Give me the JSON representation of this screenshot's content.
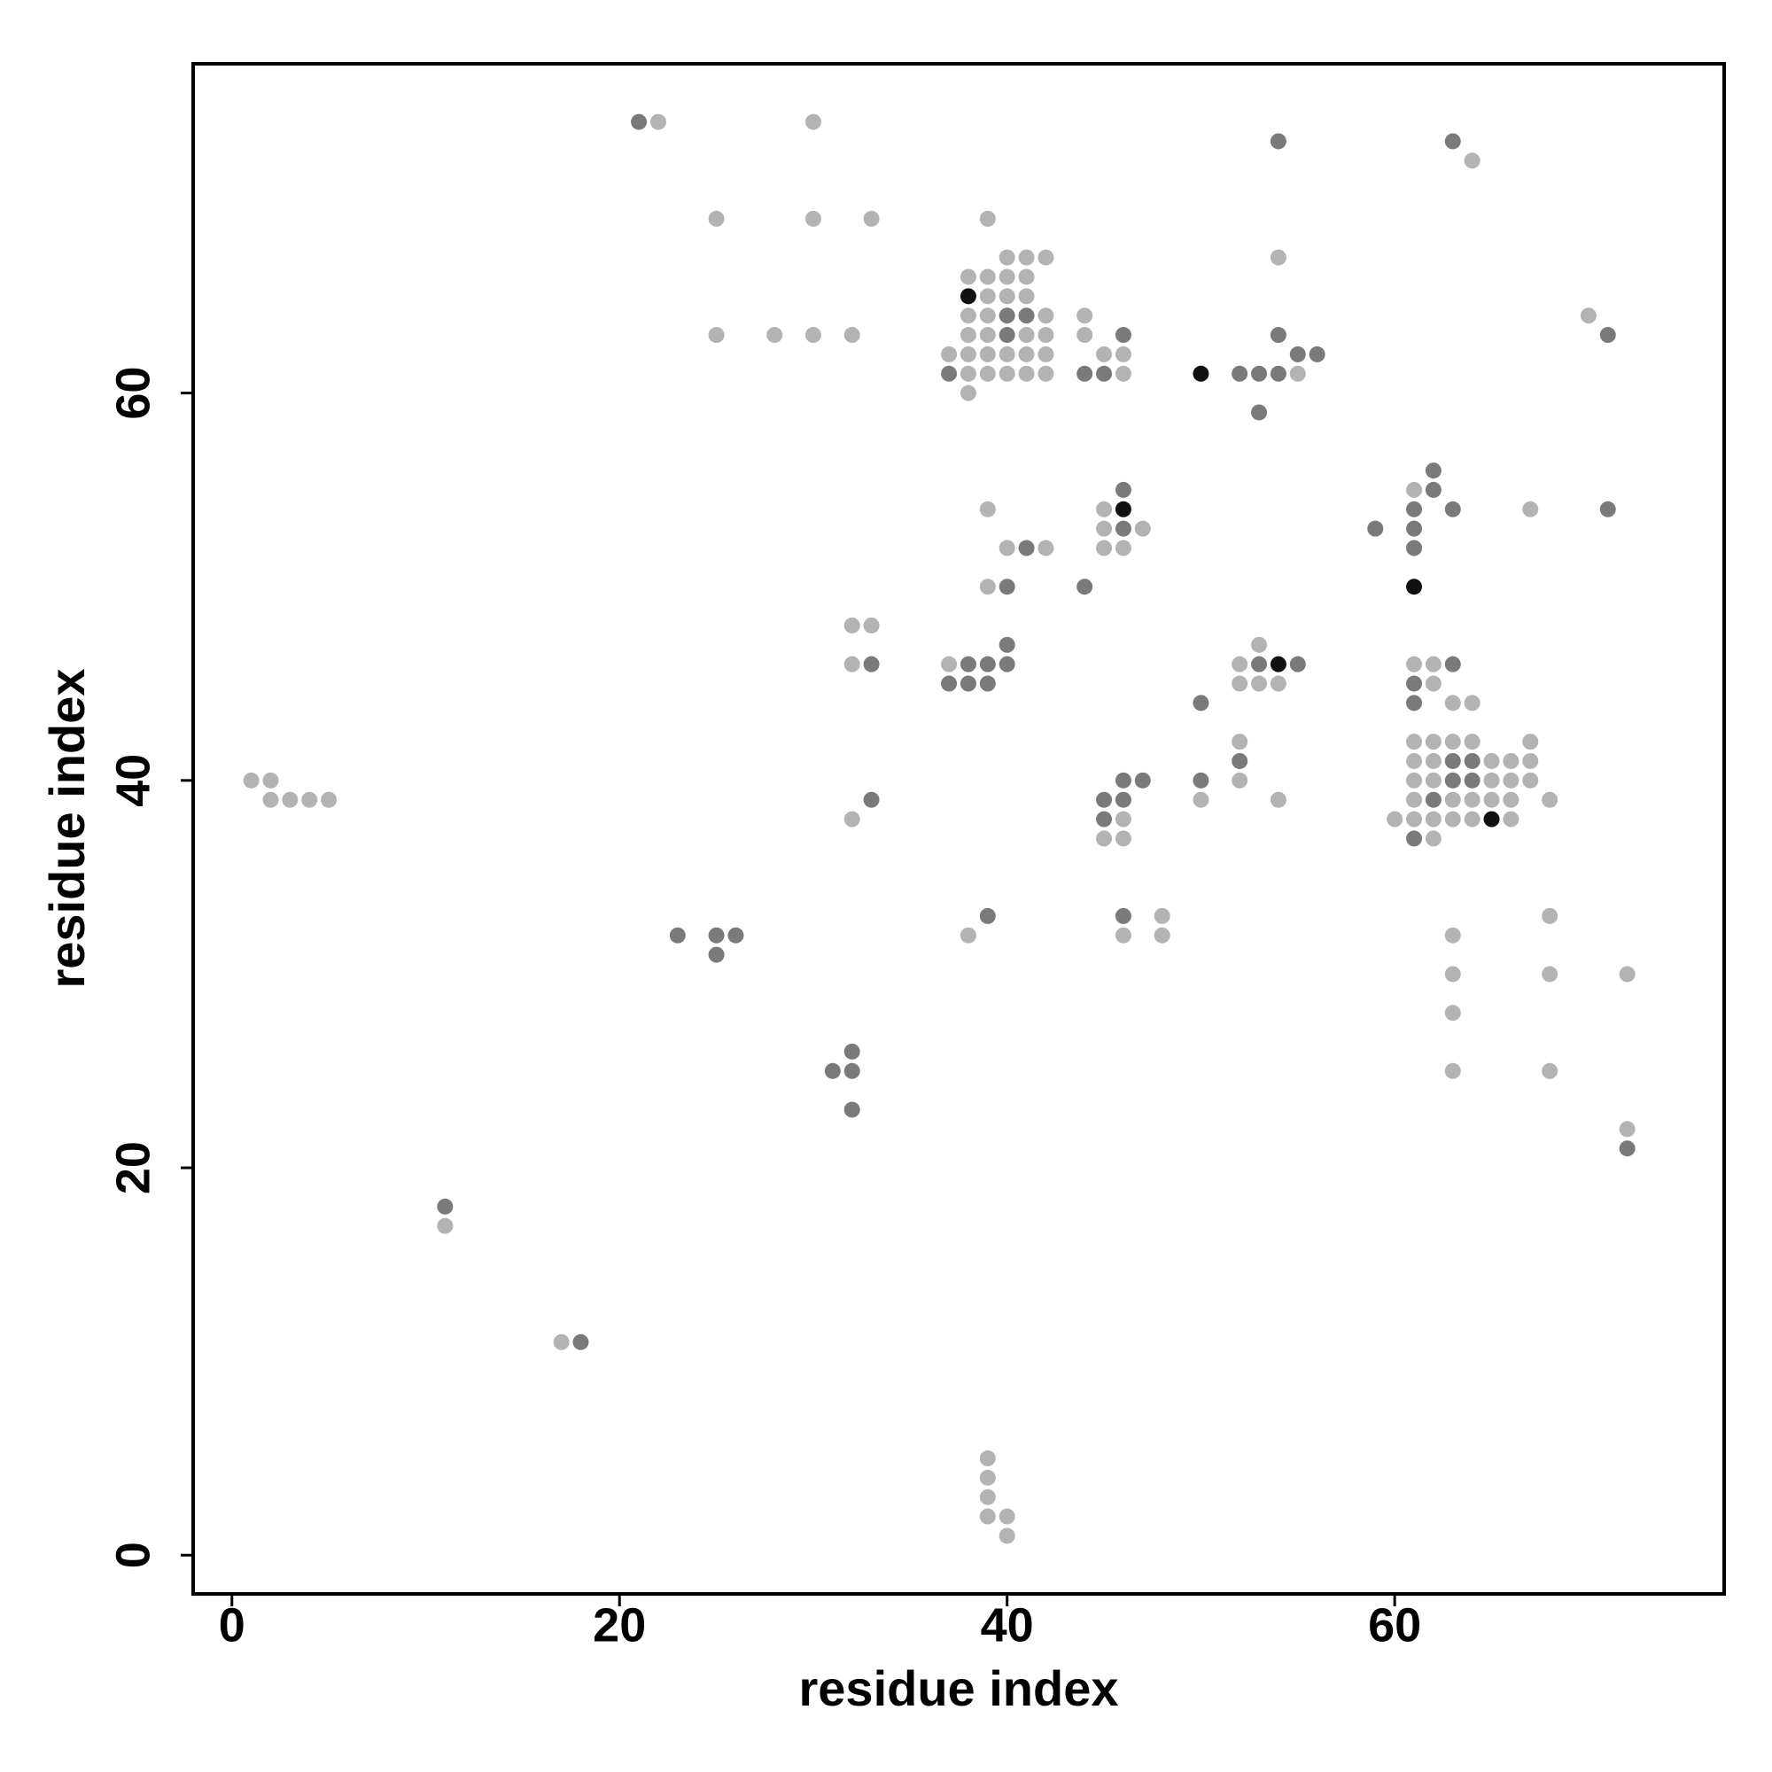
{
  "chart_data": {
    "type": "scatter",
    "x_label": "residue index",
    "y_label": "residue index",
    "xlim": [
      -2,
      77
    ],
    "ylim": [
      -2,
      77
    ],
    "xticks": [
      0,
      20,
      40,
      60
    ],
    "yticks": [
      0,
      20,
      40,
      60
    ],
    "grid": false,
    "series": [
      {
        "color": "#b3b3b3",
        "x": [
          22,
          30,
          64,
          25,
          30,
          33,
          39,
          40,
          41,
          42,
          54,
          38,
          39,
          40,
          41,
          39,
          40,
          41,
          38,
          39,
          42,
          44,
          70,
          38,
          39,
          41,
          42,
          44,
          25,
          28,
          30,
          32,
          37,
          38,
          39,
          40,
          41,
          42,
          45,
          46,
          38,
          39,
          40,
          41,
          42,
          46,
          55,
          38,
          61,
          39,
          45,
          67,
          45,
          47,
          40,
          42,
          45,
          46,
          39,
          32,
          33,
          53,
          32,
          37,
          52,
          61,
          62,
          52,
          53,
          54,
          62,
          63,
          64,
          52,
          61,
          62,
          63,
          64,
          67,
          61,
          62,
          65,
          66,
          67,
          1,
          2,
          52,
          61,
          62,
          65,
          66,
          67,
          2,
          3,
          4,
          5,
          50,
          54,
          61,
          63,
          64,
          65,
          66,
          68,
          32,
          46,
          60,
          61,
          62,
          63,
          64,
          66,
          45,
          46,
          62,
          48,
          68,
          38,
          46,
          48,
          63,
          63,
          68,
          72,
          63,
          63,
          68,
          72,
          11,
          17,
          39,
          39,
          39,
          39,
          40,
          40
        ],
        "y": [
          74,
          74,
          72,
          69,
          69,
          69,
          69,
          67,
          67,
          67,
          67,
          66,
          66,
          66,
          66,
          65,
          65,
          65,
          64,
          64,
          64,
          64,
          64,
          63,
          63,
          63,
          63,
          63,
          63,
          63,
          63,
          63,
          62,
          62,
          62,
          62,
          62,
          62,
          62,
          62,
          61,
          61,
          61,
          61,
          61,
          61,
          61,
          60,
          55,
          54,
          54,
          54,
          53,
          53,
          52,
          52,
          52,
          52,
          50,
          48,
          48,
          47,
          46,
          46,
          46,
          46,
          46,
          45,
          45,
          45,
          45,
          44,
          44,
          42,
          42,
          42,
          42,
          42,
          42,
          41,
          41,
          41,
          41,
          41,
          40,
          40,
          40,
          40,
          40,
          40,
          40,
          40,
          39,
          39,
          39,
          39,
          39,
          39,
          39,
          39,
          39,
          39,
          39,
          39,
          38,
          38,
          38,
          38,
          38,
          38,
          38,
          38,
          37,
          37,
          37,
          33,
          33,
          32,
          32,
          32,
          32,
          30,
          30,
          30,
          28,
          25,
          25,
          22,
          17,
          11,
          5,
          4,
          3,
          2,
          2,
          1
        ]
      },
      {
        "color": "#7a7a7a",
        "x": [
          21,
          54,
          63,
          40,
          41,
          40,
          46,
          54,
          71,
          55,
          56,
          37,
          44,
          45,
          52,
          53,
          54,
          53,
          62,
          46,
          62,
          61,
          63,
          71,
          46,
          59,
          61,
          41,
          61,
          40,
          44,
          40,
          33,
          38,
          39,
          40,
          53,
          55,
          63,
          37,
          38,
          39,
          61,
          50,
          61,
          52,
          63,
          64,
          46,
          47,
          50,
          63,
          64,
          33,
          45,
          46,
          62,
          45,
          61,
          39,
          46,
          23,
          25,
          26,
          25,
          32,
          31,
          32,
          32,
          72,
          11,
          18
        ],
        "y": [
          74,
          73,
          73,
          64,
          64,
          63,
          63,
          63,
          63,
          62,
          62,
          61,
          61,
          61,
          61,
          61,
          61,
          59,
          56,
          55,
          55,
          54,
          54,
          54,
          53,
          53,
          53,
          52,
          52,
          50,
          50,
          47,
          46,
          46,
          46,
          46,
          46,
          46,
          46,
          45,
          45,
          45,
          45,
          44,
          44,
          41,
          41,
          41,
          40,
          40,
          40,
          40,
          40,
          39,
          39,
          39,
          39,
          38,
          37,
          33,
          33,
          32,
          32,
          32,
          31,
          26,
          25,
          25,
          23,
          21,
          18,
          11
        ]
      },
      {
        "color": "#111111",
        "x": [
          38,
          50,
          46,
          61,
          54,
          65
        ],
        "y": [
          65,
          61,
          54,
          50,
          46,
          38
        ]
      }
    ]
  }
}
